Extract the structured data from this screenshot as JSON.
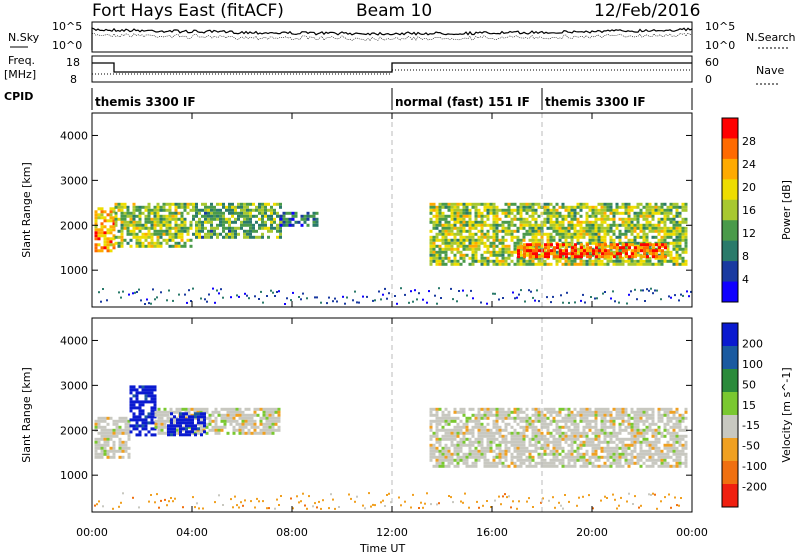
{
  "header": {
    "station": "Fort Hays East (fitACF)",
    "beam": "Beam 10",
    "date": "12/Feb/2016"
  },
  "strip_labels": {
    "nsky": "N.Sky",
    "nsky_ticks": [
      "10^5",
      "10^0"
    ],
    "nsearch": "N.Search",
    "nsearch_ticks": [
      "10^5",
      "10^0"
    ],
    "freq": "Freq.",
    "freq_unit": "[MHz]",
    "freq_ticks": [
      "18",
      "8"
    ],
    "nave": "Nave",
    "nave_ticks": [
      "60",
      "0"
    ],
    "cpid": "CPID"
  },
  "modes": [
    {
      "label": "themis 3300 IF",
      "start_hour": 0
    },
    {
      "label": "normal (fast) 151 IF",
      "start_hour": 12
    },
    {
      "label": "themis 3300 IF",
      "start_hour": 18
    }
  ],
  "axes": {
    "x_label": "Time UT",
    "x_ticks": [
      "00:00",
      "04:00",
      "08:00",
      "12:00",
      "16:00",
      "20:00",
      "00:00"
    ],
    "x_range_hours": [
      0,
      24
    ],
    "y_label": "Slant Range [km]",
    "y_ticks": [
      "1000",
      "2000",
      "3000",
      "4000"
    ],
    "y_range_km": [
      180,
      4500
    ]
  },
  "chart_data": [
    {
      "type": "heatmap",
      "quantity": "power",
      "colorbar_label": "Power [dB]",
      "colorbar_ticks": [
        "28",
        "24",
        "20",
        "16",
        "12",
        "8",
        "4"
      ],
      "colorbar_colors": [
        "#ff0000",
        "#ff6a00",
        "#ffaa00",
        "#eedd00",
        "#a8c830",
        "#4a9a4a",
        "#2a7a6a",
        "#1a3aa0",
        "#1000ff"
      ],
      "regions": [
        {
          "t0": 0.1,
          "t1": 0.9,
          "r0": 1400,
          "r1": 2400,
          "level": 0.75
        },
        {
          "t0": 0.9,
          "t1": 4.0,
          "r0": 1500,
          "r1": 2500,
          "level": 0.5
        },
        {
          "t0": 4.0,
          "t1": 7.5,
          "r0": 1700,
          "r1": 2500,
          "level": 0.4
        },
        {
          "t0": 7.5,
          "t1": 9.0,
          "r0": 2000,
          "r1": 2300,
          "level": 0.25
        },
        {
          "t0": 13.5,
          "t1": 23.8,
          "r0": 1100,
          "r1": 2500,
          "level": 0.5
        },
        {
          "t0": 17.0,
          "t1": 23.0,
          "r0": 1300,
          "r1": 1600,
          "level": 0.9
        }
      ]
    },
    {
      "type": "heatmap",
      "quantity": "velocity",
      "colorbar_label": "Velocity [m s^-1]",
      "colorbar_ticks": [
        "200",
        "100",
        "50",
        "15",
        "-15",
        "-50",
        "-100",
        "-200"
      ],
      "colorbar_colors": [
        "#0a1ad0",
        "#1a5aa0",
        "#2a8a3a",
        "#7ac830",
        "#c8c8c0",
        "#f0a020",
        "#f07010",
        "#f02010"
      ],
      "regions": [
        {
          "t0": 0.1,
          "t1": 1.5,
          "r0": 1400,
          "r1": 2300,
          "value": 0
        },
        {
          "t0": 1.5,
          "t1": 2.5,
          "r0": 1900,
          "r1": 3000,
          "value": 200
        },
        {
          "t0": 2.5,
          "t1": 7.5,
          "r0": 1900,
          "r1": 2500,
          "value": 0
        },
        {
          "t0": 3.0,
          "t1": 4.5,
          "r0": 1900,
          "r1": 2400,
          "value": 200
        },
        {
          "t0": 13.5,
          "t1": 23.8,
          "r0": 1200,
          "r1": 2500,
          "value": 0
        }
      ]
    }
  ]
}
